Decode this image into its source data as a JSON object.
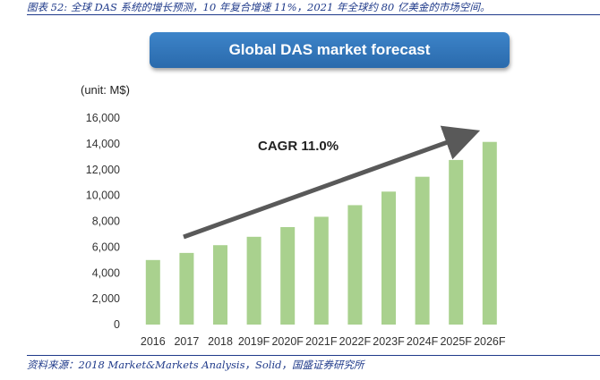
{
  "caption": "图表 52: 全球 DAS 系统的增长预测，10 年复合增速 11%，2021 年全球约 80 亿美金的市场空间。",
  "source": "资料来源：2018 Market&Markets Analysis，Solid，国盛证券研究所",
  "colors": {
    "bar": "#a9d18e",
    "arrow": "#595959",
    "title_bg": "#2e75b6",
    "caption": "#1f3a8a"
  },
  "chart_data": {
    "type": "bar",
    "title": "Global DAS market forecast",
    "unit_label": "(unit: M$)",
    "categories": [
      "2016",
      "2017",
      "2018",
      "2019F",
      "2020F",
      "2021F",
      "2022F",
      "2023F",
      "2024F",
      "2025F",
      "2026F"
    ],
    "values": [
      5000,
      5550,
      6150,
      6800,
      7550,
      8350,
      9250,
      10300,
      11450,
      12750,
      14150
    ],
    "ylim": [
      0,
      16000
    ],
    "yticks": [
      "0",
      "2,000",
      "4,000",
      "6,000",
      "8,000",
      "10,000",
      "12,000",
      "14,000",
      "16,000"
    ],
    "ytick_values": [
      0,
      2000,
      4000,
      6000,
      8000,
      10000,
      12000,
      14000,
      16000
    ],
    "annotation": "CAGR 11.0%",
    "grid": false
  }
}
